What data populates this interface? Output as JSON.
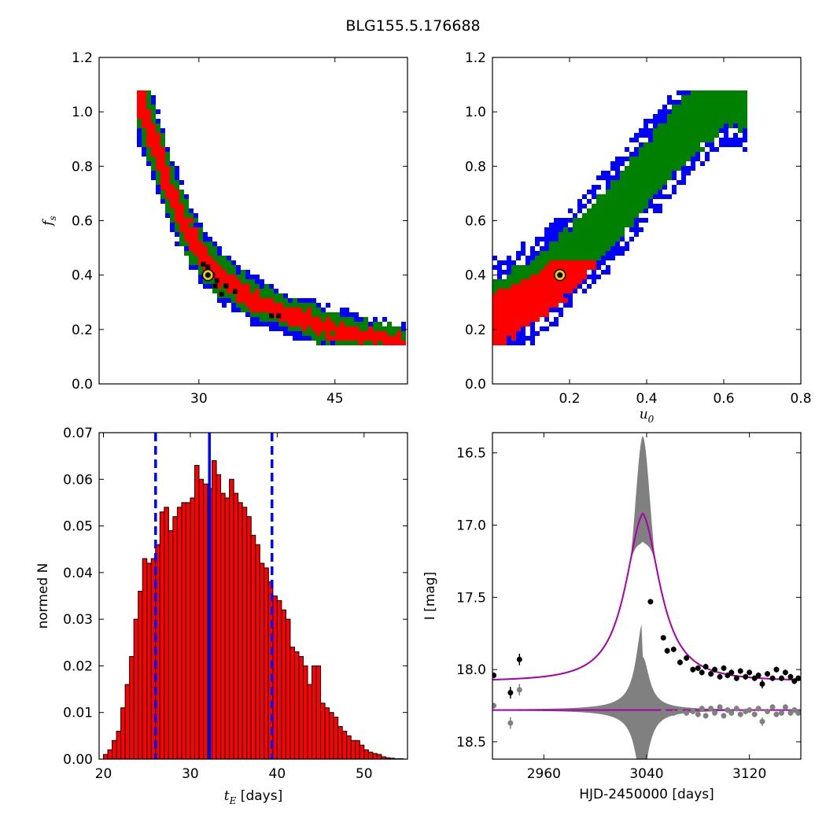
{
  "figure": {
    "title": "BLG155.5.176688"
  },
  "chart_data": [
    {
      "id": "fs_vs_tE",
      "type": "heatmap",
      "xlabel": "",
      "ylabel": "f_s",
      "xlim": [
        19,
        53
      ],
      "ylim": [
        0.0,
        1.2
      ],
      "x_ticks": [
        30,
        45
      ],
      "y_ticks": [
        0.0,
        0.2,
        0.4,
        0.6,
        0.8,
        1.0,
        1.2
      ],
      "confidence_colors": {
        "3sigma": "#0000ff",
        "2sigma": "#008000",
        "1sigma": "#ff0000",
        "best_cells": "#000000"
      },
      "ridge": [
        [
          23.5,
          1.06
        ],
        [
          25,
          0.9
        ],
        [
          27,
          0.7
        ],
        [
          29,
          0.55
        ],
        [
          31,
          0.44
        ],
        [
          33,
          0.38
        ],
        [
          36,
          0.31
        ],
        [
          40,
          0.25
        ],
        [
          45,
          0.2
        ],
        [
          49,
          0.17
        ],
        [
          52,
          0.15
        ]
      ],
      "best_fit": {
        "x": 31.0,
        "y": 0.4
      }
    },
    {
      "id": "fs_vs_u0",
      "type": "heatmap",
      "xlabel": "u_0",
      "ylabel": "",
      "xlim": [
        0.0,
        0.8
      ],
      "ylim": [
        0.0,
        1.2
      ],
      "x_ticks": [
        0.2,
        0.4,
        0.6,
        0.8
      ],
      "y_ticks": [
        0.0,
        0.2,
        0.4,
        0.6,
        0.8,
        1.0,
        1.2
      ],
      "confidence_colors": {
        "3sigma": "#0000ff",
        "2sigma": "#008000",
        "1sigma": "#ff0000"
      },
      "ridge": [
        [
          0.0,
          0.25
        ],
        [
          0.1,
          0.33
        ],
        [
          0.2,
          0.45
        ],
        [
          0.3,
          0.6
        ],
        [
          0.4,
          0.77
        ],
        [
          0.5,
          0.93
        ],
        [
          0.6,
          1.06
        ]
      ],
      "best_fit": {
        "x": 0.175,
        "y": 0.4
      }
    },
    {
      "id": "tE_histogram",
      "type": "bar",
      "xlabel": "t_E [days]",
      "ylabel": "normed N",
      "xlim": [
        19.5,
        55
      ],
      "ylim": [
        0.0,
        0.07
      ],
      "x_ticks": [
        20,
        30,
        40,
        50
      ],
      "y_ticks": [
        0.0,
        0.01,
        0.02,
        0.03,
        0.04,
        0.05,
        0.06,
        0.07
      ],
      "bin_start": 20.0,
      "bin_width": 0.5,
      "values": [
        0.001,
        0.002,
        0.004,
        0.006,
        0.011,
        0.016,
        0.022,
        0.03,
        0.036,
        0.043,
        0.042,
        0.043,
        0.046,
        0.053,
        0.054,
        0.049,
        0.052,
        0.054,
        0.055,
        0.055,
        0.056,
        0.063,
        0.06,
        0.059,
        0.058,
        0.064,
        0.061,
        0.057,
        0.056,
        0.06,
        0.057,
        0.055,
        0.054,
        0.052,
        0.048,
        0.046,
        0.042,
        0.041,
        0.038,
        0.035,
        0.034,
        0.032,
        0.03,
        0.024,
        0.023,
        0.022,
        0.02,
        0.016,
        0.02,
        0.02,
        0.012,
        0.011,
        0.01,
        0.009,
        0.007,
        0.006,
        0.005,
        0.004,
        0.004,
        0.003,
        0.002,
        0.0015,
        0.0012,
        0.001,
        0.0005,
        0.0003,
        0.0002,
        0.0001,
        0.0001
      ],
      "bar_color": "#ff0000",
      "vlines": [
        {
          "x": 26.0,
          "style": "dashed",
          "color": "#0000ff"
        },
        {
          "x": 32.2,
          "style": "solid",
          "color": "#0000ff"
        },
        {
          "x": 39.4,
          "style": "dashed",
          "color": "#0000ff"
        }
      ]
    },
    {
      "id": "lightcurve",
      "type": "line",
      "xlabel": "HJD-2450000 [days]",
      "ylabel": "I [mag]",
      "xlim": [
        2920,
        3160
      ],
      "ylim": [
        18.62,
        16.36
      ],
      "y_inverted": true,
      "x_ticks": [
        2960,
        3040,
        3120
      ],
      "y_ticks": [
        16.5,
        17.0,
        17.5,
        18.0,
        18.5
      ],
      "model": {
        "baseline": 18.08,
        "peak": 16.92,
        "t0": 3037,
        "tau": 18,
        "color": "#aa00aa"
      },
      "model_envelope_peak": 16.38,
      "residual_offset": 18.28,
      "observations": [
        {
          "x": 2921,
          "y": 18.04,
          "e": 0.02
        },
        {
          "x": 2934,
          "y": 18.16,
          "e": 0.04
        },
        {
          "x": 2941,
          "y": 17.93,
          "e": 0.04
        },
        {
          "x": 3043,
          "y": 17.53,
          "e": 0.01
        },
        {
          "x": 3053,
          "y": 17.78,
          "e": 0.01
        },
        {
          "x": 3056,
          "y": 17.87,
          "e": 0.02
        },
        {
          "x": 3061,
          "y": 17.86,
          "e": 0.02
        },
        {
          "x": 3066,
          "y": 17.95,
          "e": 0.02
        },
        {
          "x": 3071,
          "y": 17.92,
          "e": 0.02
        },
        {
          "x": 3076,
          "y": 18.0,
          "e": 0.02
        },
        {
          "x": 3080,
          "y": 17.99,
          "e": 0.02
        },
        {
          "x": 3083,
          "y": 18.02,
          "e": 0.02
        },
        {
          "x": 3086,
          "y": 17.98,
          "e": 0.02
        },
        {
          "x": 3090,
          "y": 18.03,
          "e": 0.02
        },
        {
          "x": 3093,
          "y": 18.0,
          "e": 0.02
        },
        {
          "x": 3097,
          "y": 18.05,
          "e": 0.02
        },
        {
          "x": 3100,
          "y": 17.99,
          "e": 0.02
        },
        {
          "x": 3103,
          "y": 18.04,
          "e": 0.02
        },
        {
          "x": 3106,
          "y": 18.02,
          "e": 0.02
        },
        {
          "x": 3110,
          "y": 18.06,
          "e": 0.02
        },
        {
          "x": 3113,
          "y": 18.01,
          "e": 0.02
        },
        {
          "x": 3117,
          "y": 18.05,
          "e": 0.02
        },
        {
          "x": 3120,
          "y": 18.02,
          "e": 0.02
        },
        {
          "x": 3124,
          "y": 18.06,
          "e": 0.02
        },
        {
          "x": 3127,
          "y": 18.04,
          "e": 0.02
        },
        {
          "x": 3130,
          "y": 18.1,
          "e": 0.03
        },
        {
          "x": 3134,
          "y": 18.03,
          "e": 0.02
        },
        {
          "x": 3138,
          "y": 18.06,
          "e": 0.02
        },
        {
          "x": 3141,
          "y": 18.0,
          "e": 0.02
        },
        {
          "x": 3145,
          "y": 18.06,
          "e": 0.02
        },
        {
          "x": 3148,
          "y": 18.02,
          "e": 0.02
        },
        {
          "x": 3152,
          "y": 18.05,
          "e": 0.02
        },
        {
          "x": 3155,
          "y": 18.08,
          "e": 0.02
        },
        {
          "x": 3158,
          "y": 18.06,
          "e": 0.02
        }
      ],
      "residuals": [
        {
          "x": 2921,
          "y": 18.25,
          "e": 0.02
        },
        {
          "x": 2934,
          "y": 18.37,
          "e": 0.04
        },
        {
          "x": 2941,
          "y": 18.14,
          "e": 0.04
        },
        {
          "x": 3053,
          "y": 18.29,
          "e": 0.01
        },
        {
          "x": 3056,
          "y": 18.31,
          "e": 0.02
        },
        {
          "x": 3061,
          "y": 18.3,
          "e": 0.02
        },
        {
          "x": 3066,
          "y": 18.28,
          "e": 0.02
        },
        {
          "x": 3071,
          "y": 18.3,
          "e": 0.02
        },
        {
          "x": 3076,
          "y": 18.29,
          "e": 0.02
        },
        {
          "x": 3080,
          "y": 18.31,
          "e": 0.02
        },
        {
          "x": 3083,
          "y": 18.27,
          "e": 0.02
        },
        {
          "x": 3086,
          "y": 18.32,
          "e": 0.02
        },
        {
          "x": 3090,
          "y": 18.27,
          "e": 0.02
        },
        {
          "x": 3093,
          "y": 18.3,
          "e": 0.02
        },
        {
          "x": 3097,
          "y": 18.26,
          "e": 0.02
        },
        {
          "x": 3100,
          "y": 18.32,
          "e": 0.02
        },
        {
          "x": 3103,
          "y": 18.28,
          "e": 0.02
        },
        {
          "x": 3106,
          "y": 18.3,
          "e": 0.02
        },
        {
          "x": 3110,
          "y": 18.27,
          "e": 0.02
        },
        {
          "x": 3113,
          "y": 18.31,
          "e": 0.02
        },
        {
          "x": 3117,
          "y": 18.29,
          "e": 0.02
        },
        {
          "x": 3120,
          "y": 18.28,
          "e": 0.02
        },
        {
          "x": 3124,
          "y": 18.31,
          "e": 0.02
        },
        {
          "x": 3127,
          "y": 18.27,
          "e": 0.02
        },
        {
          "x": 3130,
          "y": 18.36,
          "e": 0.03
        },
        {
          "x": 3134,
          "y": 18.29,
          "e": 0.02
        },
        {
          "x": 3138,
          "y": 18.26,
          "e": 0.02
        },
        {
          "x": 3141,
          "y": 18.31,
          "e": 0.02
        },
        {
          "x": 3145,
          "y": 18.3,
          "e": 0.02
        },
        {
          "x": 3148,
          "y": 18.26,
          "e": 0.02
        },
        {
          "x": 3152,
          "y": 18.3,
          "e": 0.02
        },
        {
          "x": 3155,
          "y": 18.28,
          "e": 0.02
        },
        {
          "x": 3158,
          "y": 18.3,
          "e": 0.02
        }
      ]
    }
  ]
}
